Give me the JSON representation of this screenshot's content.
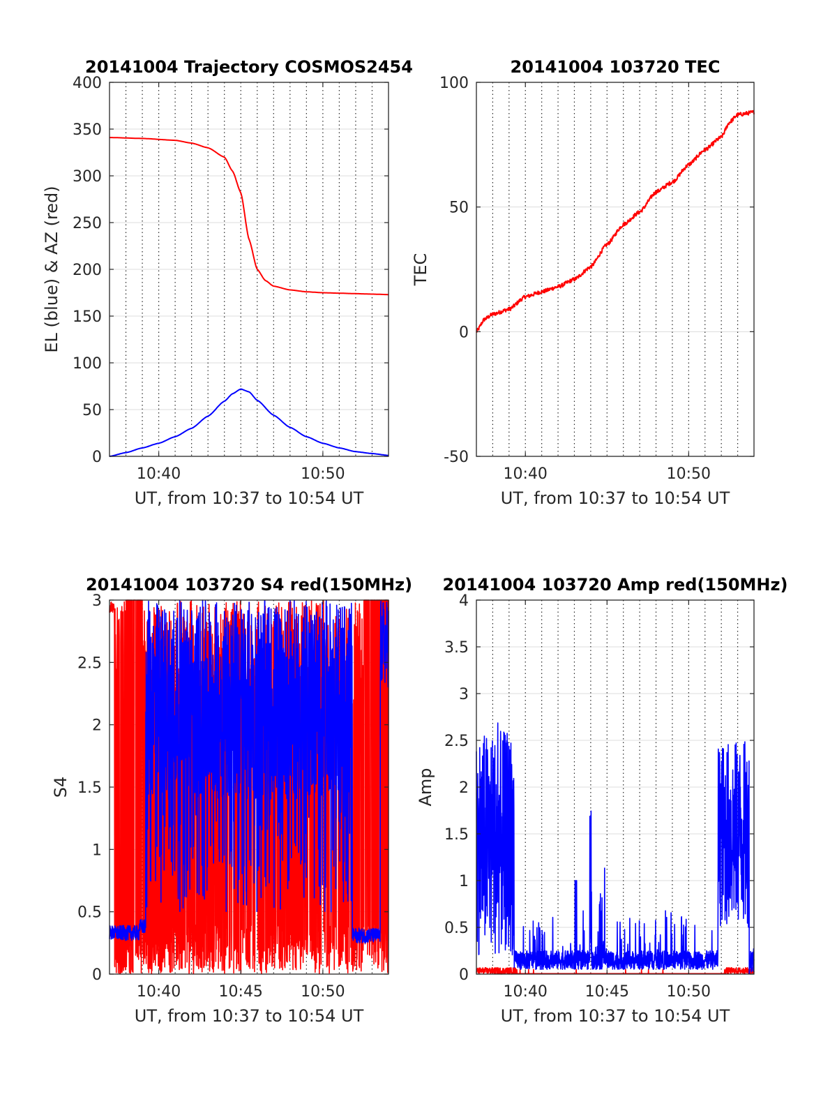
{
  "colors": {
    "el": "#0000ff",
    "az": "#ff0000",
    "tec": "#ff0000",
    "s4_red": "#ff0000",
    "s4_blue": "#0000ff",
    "amp_red": "#ff0000",
    "amp_blue": "#0000ff",
    "axis": "#262626",
    "grid": "#262626"
  },
  "chart_data": [
    {
      "type": "line",
      "title": "20141004 Trajectory COSMOS2454",
      "xlabel": "UT, from 10:37 to 10:54 UT",
      "ylabel": "EL (blue) & AZ (red)",
      "xlim": [
        0,
        17
      ],
      "ylim": [
        0,
        400
      ],
      "xticks": [
        3,
        13
      ],
      "xticklabels": [
        "10:40",
        "10:50"
      ],
      "yticks": [
        0,
        50,
        100,
        150,
        200,
        250,
        300,
        350,
        400
      ],
      "yticklabels": [
        "0",
        "50",
        "100",
        "150",
        "200",
        "250",
        "300",
        "350",
        "400"
      ],
      "minor_xgrid": true,
      "series": [
        {
          "color": "az",
          "x": [
            0,
            2,
            4,
            5,
            6,
            7,
            7.5,
            8,
            8.5,
            9,
            9.5,
            10,
            11,
            12,
            13,
            14,
            15,
            16,
            17
          ],
          "values": [
            341,
            340,
            338,
            335,
            330,
            320,
            305,
            282,
            232,
            200,
            188,
            182,
            178,
            176,
            175,
            174.5,
            174,
            173.5,
            173
          ]
        },
        {
          "color": "el",
          "x": [
            0,
            1,
            2,
            3,
            4,
            5,
            6,
            7,
            7.5,
            8,
            8.5,
            9,
            10,
            11,
            12,
            13,
            14,
            15,
            16,
            17
          ],
          "values": [
            0,
            4,
            9,
            14,
            21,
            30,
            43,
            59,
            67,
            72,
            69,
            60,
            44,
            31,
            21,
            14,
            9,
            5,
            3,
            1
          ]
        }
      ]
    },
    {
      "type": "line",
      "title": "20141004 103720 TEC",
      "xlabel": "UT, from 10:37 to 10:54 UT",
      "ylabel": "TEC",
      "xlim": [
        0,
        17
      ],
      "ylim": [
        -50,
        100
      ],
      "xticks": [
        3,
        13
      ],
      "xticklabels": [
        "10:40",
        "10:50"
      ],
      "yticks": [
        -50,
        0,
        50,
        100
      ],
      "yticklabels": [
        "-50",
        "0",
        "50",
        "100"
      ],
      "minor_xgrid": true,
      "series": [
        {
          "color": "tec",
          "x": [
            0,
            0.5,
            1,
            2,
            3,
            4,
            5,
            6,
            7,
            8,
            9,
            10,
            11,
            12,
            13,
            14,
            15,
            15.5,
            16,
            17
          ],
          "values": [
            0,
            5,
            7,
            9,
            14,
            16,
            18,
            21,
            26,
            35,
            43,
            48,
            56,
            60,
            67,
            73,
            78,
            84,
            87,
            88
          ]
        }
      ]
    },
    {
      "type": "line",
      "title": "20141004 103720 S4 red(150MHz)",
      "xlabel": "UT, from 10:37 to 10:54 UT",
      "ylabel": "S4",
      "xlim": [
        0,
        17
      ],
      "ylim": [
        0,
        3
      ],
      "xticks": [
        3,
        8,
        13
      ],
      "xticklabels": [
        "10:40",
        "10:45",
        "10:50"
      ],
      "yticks": [
        0,
        0.5,
        1,
        1.5,
        2,
        2.5,
        3
      ],
      "yticklabels": [
        "0",
        "0.5",
        "1",
        "1.5",
        "2",
        "2.5",
        "3"
      ],
      "minor_xgrid": true,
      "noisy": true,
      "series": [
        {
          "color": "s4_red",
          "kind": "s4red"
        },
        {
          "color": "s4_blue",
          "kind": "s4blue"
        }
      ]
    },
    {
      "type": "line",
      "title": "20141004 103720 Amp red(150MHz)",
      "xlabel": "UT, from 10:37 to 10:54 UT",
      "ylabel": "Amp",
      "xlim": [
        0,
        17
      ],
      "ylim": [
        0,
        4
      ],
      "xticks": [
        3,
        8,
        13
      ],
      "xticklabels": [
        "10:40",
        "10:45",
        "10:50"
      ],
      "yticks": [
        0,
        0.5,
        1,
        1.5,
        2,
        2.5,
        3,
        3.5,
        4
      ],
      "yticklabels": [
        "0",
        "0.5",
        "1",
        "1.5",
        "2",
        "2.5",
        "3",
        "3.5",
        "4"
      ],
      "minor_xgrid": true,
      "noisy": true,
      "series": [
        {
          "color": "amp_red",
          "kind": "ampred"
        },
        {
          "color": "amp_blue",
          "kind": "ampblue"
        }
      ]
    }
  ]
}
